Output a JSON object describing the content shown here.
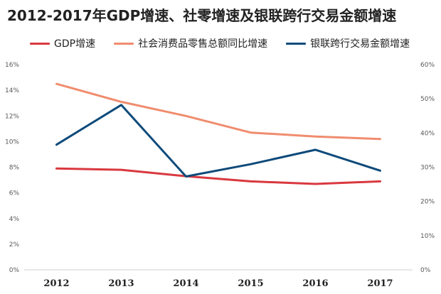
{
  "chart_data": {
    "type": "line",
    "title": "2012-2017年GDP增速、社零增速及银联跨行交易金额增速",
    "categories": [
      "2012",
      "2013",
      "2014",
      "2015",
      "2016",
      "2017"
    ],
    "series": [
      {
        "name": "GDP增速",
        "axis": "left",
        "color": "#d9383f",
        "values": [
          7.9,
          7.8,
          7.3,
          6.9,
          6.7,
          6.9
        ]
      },
      {
        "name": "社会消费品零售总额同比增速",
        "axis": "left",
        "color": "#f08c6e",
        "values": [
          14.5,
          13.1,
          12.0,
          10.7,
          10.4,
          10.2
        ]
      },
      {
        "name": "银联跨行交易金额增速",
        "axis": "right",
        "color": "#0e4a7a",
        "values": [
          36.6,
          48.2,
          27.3,
          30.9,
          35.1,
          29.0
        ]
      }
    ],
    "y_left": {
      "min": 0,
      "max": 16,
      "ticks": [
        "0%",
        "2%",
        "4%",
        "6%",
        "8%",
        "10%",
        "12%",
        "14%",
        "16%"
      ]
    },
    "y_right": {
      "min": 0,
      "max": 60,
      "ticks": [
        "0%",
        "10%",
        "20%",
        "30%",
        "40%",
        "50%",
        "60%"
      ]
    },
    "xlabel": "",
    "ylabel": "",
    "grid": false,
    "legend_position": "top"
  }
}
